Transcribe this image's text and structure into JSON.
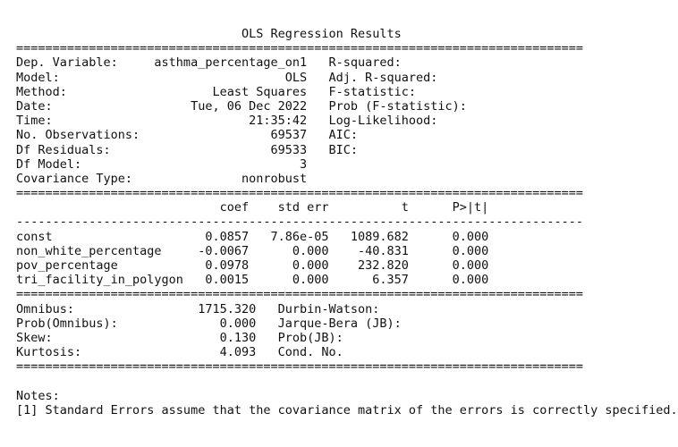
{
  "title": "                               OLS Regression Results",
  "sep_double": "==============================================================================",
  "sep_single": "------------------------------------------------------------------------------",
  "header_rows": [
    "Dep. Variable:     asthma_percentage_on1   R-squared:",
    "Model:                               OLS   Adj. R-squared:",
    "Method:                    Least Squares   F-statistic:",
    "Date:                   Tue, 06 Dec 2022   Prob (F-statistic):",
    "Time:                           21:35:42   Log-Likelihood:",
    "No. Observations:                  69537   AIC:",
    "Df Residuals:                      69533   BIC:",
    "Df Model:                              3",
    "Covariance Type:               nonrobust"
  ],
  "coef_header": "                            coef    std err          t      P>|t|",
  "coef_rows": [
    "const                     0.0857   7.86e-05   1089.682      0.000",
    "non_white_percentage     -0.0067      0.000    -40.831      0.000",
    "pov_percentage            0.0978      0.000    232.820      0.000",
    "tri_facility_in_polygon   0.0015      0.000      6.357      0.000"
  ],
  "diag_rows": [
    "Omnibus:                 1715.320   Durbin-Watson:",
    "Prob(Omnibus):              0.000   Jarque-Bera (JB):",
    "Skew:                       0.130   Prob(JB):",
    "Kurtosis:                   4.093   Cond. No."
  ],
  "notes_label": "Notes:",
  "notes_text": "[1] Standard Errors assume that the covariance matrix of the errors is correctly specified."
}
